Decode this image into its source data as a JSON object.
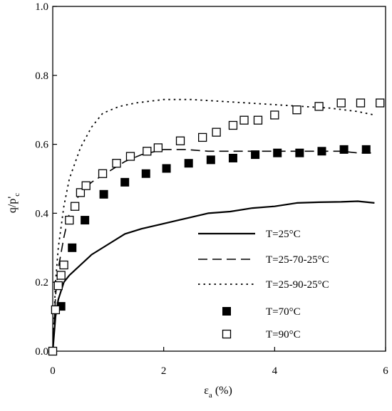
{
  "chart_data": {
    "type": "scatter",
    "title": "",
    "xlabel": "ε",
    "xlabel_sub": "a",
    "xlabel_unit": " (%)",
    "ylabel": "q/p'",
    "ylabel_sub": "c",
    "xlim": [
      0,
      6
    ],
    "ylim": [
      0,
      1.0
    ],
    "xticks": [
      0,
      2,
      4,
      6
    ],
    "xtick_labels": [
      "0",
      "2",
      "4",
      "6"
    ],
    "yticks": [
      0,
      0.2,
      0.4,
      0.6,
      0.8,
      1.0
    ],
    "ytick_labels": [
      "0.0",
      "0.2",
      "0.4",
      "0.6",
      "0.8",
      "1.0"
    ],
    "grid": false,
    "legend_position": "bottom-right",
    "series": [
      {
        "name": "T=25°C",
        "kind": "line",
        "style": "solid",
        "color": "#000000",
        "x": [
          0,
          0.05,
          0.1,
          0.2,
          0.3,
          0.5,
          0.7,
          1.0,
          1.3,
          1.6,
          2.0,
          2.4,
          2.8,
          3.2,
          3.6,
          4.0,
          4.4,
          4.8,
          5.2,
          5.5,
          5.8
        ],
        "y": [
          0,
          0.1,
          0.15,
          0.2,
          0.22,
          0.25,
          0.28,
          0.31,
          0.34,
          0.355,
          0.37,
          0.385,
          0.4,
          0.405,
          0.415,
          0.42,
          0.43,
          0.432,
          0.433,
          0.435,
          0.43
        ]
      },
      {
        "name": "T=25-70-25°C",
        "kind": "line",
        "style": "dashed",
        "color": "#000000",
        "x": [
          0,
          0.05,
          0.1,
          0.2,
          0.3,
          0.5,
          0.7,
          1.0,
          1.3,
          1.6,
          2.0,
          2.4,
          2.8,
          3.2,
          3.6,
          4.0,
          4.4,
          4.8,
          5.2,
          5.5,
          5.8
        ],
        "y": [
          0,
          0.16,
          0.24,
          0.33,
          0.4,
          0.46,
          0.49,
          0.52,
          0.55,
          0.57,
          0.585,
          0.585,
          0.58,
          0.58,
          0.58,
          0.58,
          0.58,
          0.58,
          0.58,
          0.575,
          0.575
        ]
      },
      {
        "name": "T=25-90-25°C",
        "kind": "line",
        "style": "dotted",
        "color": "#000000",
        "x": [
          0,
          0.05,
          0.1,
          0.2,
          0.3,
          0.5,
          0.7,
          0.9,
          1.2,
          1.5,
          2.0,
          2.5,
          3.0,
          3.5,
          4.0,
          4.5,
          5.0,
          5.5,
          5.8
        ],
        "y": [
          0,
          0.2,
          0.3,
          0.42,
          0.5,
          0.59,
          0.65,
          0.69,
          0.71,
          0.72,
          0.73,
          0.73,
          0.725,
          0.72,
          0.715,
          0.71,
          0.705,
          0.695,
          0.685
        ]
      },
      {
        "name": "T=70°C",
        "kind": "marker",
        "marker": "filled-square",
        "color": "#000000",
        "x": [
          0.0,
          0.15,
          0.35,
          0.58,
          0.92,
          1.3,
          1.68,
          2.05,
          2.45,
          2.85,
          3.25,
          3.65,
          4.05,
          4.45,
          4.85,
          5.25,
          5.65
        ],
        "y": [
          0.0,
          0.13,
          0.3,
          0.38,
          0.455,
          0.49,
          0.515,
          0.53,
          0.545,
          0.555,
          0.56,
          0.57,
          0.575,
          0.575,
          0.58,
          0.585,
          0.585
        ]
      },
      {
        "name": "T=90°C",
        "kind": "marker",
        "marker": "open-square",
        "color": "#000000",
        "x": [
          0.0,
          0.05,
          0.1,
          0.15,
          0.2,
          0.3,
          0.4,
          0.5,
          0.6,
          0.9,
          1.15,
          1.4,
          1.7,
          1.9,
          2.3,
          2.7,
          2.95,
          3.25,
          3.45,
          3.7,
          4.0,
          4.4,
          4.8,
          5.2,
          5.55,
          5.9
        ],
        "y": [
          0.0,
          0.12,
          0.19,
          0.22,
          0.25,
          0.38,
          0.42,
          0.46,
          0.48,
          0.515,
          0.545,
          0.565,
          0.58,
          0.59,
          0.61,
          0.62,
          0.635,
          0.655,
          0.67,
          0.67,
          0.685,
          0.7,
          0.71,
          0.72,
          0.72,
          0.72
        ]
      }
    ]
  }
}
